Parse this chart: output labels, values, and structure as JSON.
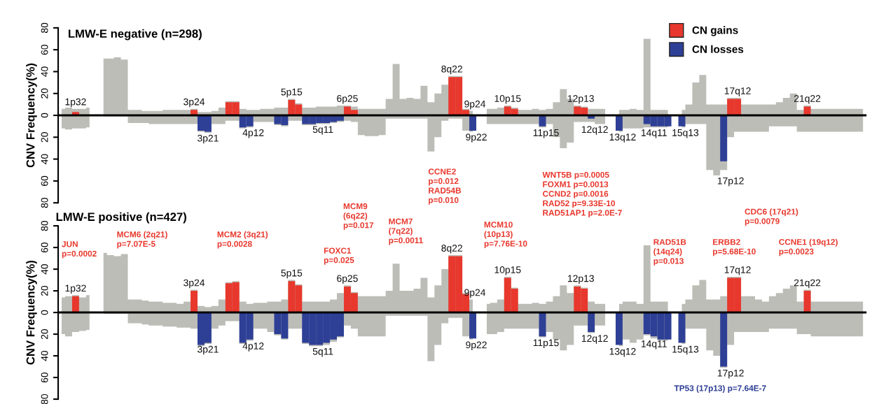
{
  "chart_data": [
    {
      "type": "area",
      "title": "LMW-E negative (n=298)",
      "ylabel": "CNV Frequency(%)",
      "categories": [
        null,
        null,
        null,
        null,
        null,
        null,
        null,
        null,
        null,
        null,
        null,
        null,
        null,
        null,
        null,
        null,
        null,
        null,
        null,
        null,
        null,
        null,
        null,
        null,
        null,
        null,
        null,
        null,
        null,
        null,
        null,
        null,
        null,
        null,
        null,
        null,
        null,
        null,
        null,
        null,
        null,
        null,
        null,
        null,
        null,
        null,
        null,
        null,
        null,
        null,
        null,
        null,
        null,
        null,
        null,
        null,
        null,
        null,
        null,
        null,
        null,
        null,
        null,
        null,
        null,
        null,
        null,
        null,
        null,
        null,
        null,
        null,
        null,
        null,
        null,
        null,
        null,
        null,
        null,
        null,
        null,
        null,
        null,
        null,
        null,
        null,
        null,
        null,
        null,
        null,
        null,
        null,
        null,
        null,
        null,
        null,
        null,
        null,
        null,
        null,
        null,
        null,
        null,
        null,
        null,
        null,
        null,
        null,
        null,
        null,
        null,
        null,
        null,
        null,
        null,
        null
      ],
      "ylim": [
        -80,
        80
      ],
      "yticks": [
        {
          "value": -80,
          "label": "80"
        },
        {
          "value": -60,
          "label": "60"
        },
        {
          "value": -40,
          "label": "40"
        },
        {
          "value": -20,
          "label": "20"
        },
        0,
        20,
        40,
        60,
        80
      ],
      "tick_labels": "y",
      "legend": "top right",
      "ref_lines": [
        {
          "axis": "y",
          "value": 0,
          "color": "#000000"
        }
      ],
      "annotations": [
        "1p32",
        "3p24",
        "5p15",
        "6p25",
        "8q22",
        "9p24",
        "10p15",
        "12p13",
        "17q12",
        "21q22",
        "3p21",
        "4p12",
        "5q11",
        "9p22",
        "11p15",
        "12q12",
        "13q12",
        "14q11",
        "15q13",
        "17p12"
      ],
      "series": [
        {
          "color": "#bdbdb8",
          "values": [
            6,
            7,
            6,
            6,
            7,
            null,
            52,
            52,
            53,
            51,
            5,
            5,
            4,
            4,
            4,
            5,
            5,
            5,
            5,
            6,
            3,
            3,
            4,
            7,
            13,
            13,
            6,
            5,
            5,
            6,
            6,
            7,
            7,
            15,
            11,
            7,
            7,
            8,
            8,
            8,
            9,
            9,
            8,
            6,
            6,
            6,
            6,
            15,
            47,
            15,
            16,
            15,
            27,
            12,
            20,
            28,
            36,
            36,
            6,
            4,
            null,
            6,
            6,
            7,
            9,
            7,
            5,
            5,
            6,
            5,
            6,
            12,
            24,
            15,
            9,
            8,
            6,
            6,
            6,
            null,
            5,
            5,
            6,
            5,
            70,
            5,
            5,
            5,
            null,
            5,
            10,
            30,
            37,
            10,
            10,
            10,
            16,
            16,
            10,
            10,
            10,
            10,
            10,
            12,
            16,
            20,
            5,
            9,
            6,
            6,
            6,
            6,
            6,
            6,
            6,
            6
          ]
        },
        {
          "color": "#bdbdb8",
          "values": [
            -12,
            -13,
            -12,
            -12,
            -11,
            null,
            -1,
            -1,
            -1,
            -1,
            -7,
            -7,
            -7,
            -8,
            -8,
            -8,
            -8,
            -8,
            -8,
            -8,
            -15,
            -16,
            -8,
            -8,
            -5,
            -5,
            -12,
            -11,
            -6,
            -6,
            -6,
            -9,
            -10,
            -5,
            -5,
            -9,
            -9,
            -8,
            -8,
            -7,
            -6,
            -5,
            -6,
            -18,
            -19,
            -19,
            -18,
            -3,
            -3,
            -3,
            -3,
            -3,
            -3,
            -33,
            -20,
            -5,
            -3,
            -3,
            -14,
            -15,
            null,
            -8,
            -8,
            -8,
            -8,
            -8,
            -8,
            -8,
            -8,
            -11,
            -8,
            -20,
            -30,
            -25,
            -6,
            -6,
            -6,
            -8,
            -8,
            null,
            -15,
            -12,
            -12,
            -12,
            -11,
            -11,
            -11,
            -11,
            null,
            -11,
            -8,
            -8,
            -8,
            -50,
            -55,
            -50,
            -20,
            -15,
            -15,
            -15,
            -15,
            -15,
            -10,
            -10,
            -10,
            -10,
            -15,
            -15,
            -15,
            -15,
            -15,
            -15,
            -15,
            -15,
            -15,
            -15
          ]
        },
        {
          "name": "CN gains",
          "type": "bar",
          "color": "#e8382d",
          "values": [
            null,
            null,
            3,
            null,
            null,
            null,
            null,
            null,
            null,
            null,
            null,
            null,
            null,
            null,
            null,
            null,
            null,
            null,
            null,
            5,
            null,
            null,
            null,
            null,
            12,
            12,
            null,
            null,
            null,
            null,
            null,
            null,
            null,
            14,
            10,
            null,
            null,
            null,
            null,
            null,
            null,
            8,
            5,
            null,
            null,
            null,
            null,
            null,
            null,
            null,
            null,
            null,
            null,
            null,
            null,
            null,
            35,
            35,
            5,
            null,
            null,
            null,
            null,
            null,
            8,
            6,
            null,
            null,
            null,
            null,
            null,
            null,
            null,
            null,
            8,
            7,
            null,
            null,
            null,
            null,
            null,
            null,
            null,
            null,
            null,
            null,
            null,
            null,
            null,
            null,
            null,
            null,
            null,
            null,
            null,
            null,
            15,
            15,
            null,
            null,
            null,
            null,
            null,
            null,
            null,
            null,
            null,
            8,
            null,
            null,
            null,
            null,
            null,
            null,
            null,
            null
          ]
        },
        {
          "name": "CN losses",
          "type": "bar",
          "color": "#2e3f96",
          "values": [
            null,
            null,
            null,
            null,
            null,
            null,
            null,
            null,
            null,
            null,
            null,
            null,
            null,
            null,
            null,
            null,
            null,
            null,
            null,
            null,
            -14,
            -15,
            null,
            null,
            null,
            null,
            -11,
            -10,
            null,
            null,
            null,
            -8,
            -9,
            null,
            null,
            -8,
            -8,
            -7,
            -7,
            -6,
            -5,
            null,
            null,
            null,
            null,
            null,
            null,
            null,
            null,
            null,
            null,
            null,
            null,
            null,
            null,
            null,
            null,
            null,
            null,
            -14,
            null,
            null,
            null,
            null,
            null,
            null,
            null,
            null,
            null,
            -10,
            null,
            null,
            null,
            null,
            null,
            null,
            -3,
            null,
            null,
            null,
            -14,
            null,
            null,
            null,
            -8,
            -10,
            -10,
            -10,
            null,
            -10,
            null,
            null,
            null,
            null,
            null,
            -42,
            null,
            null,
            null,
            null,
            null,
            null,
            null,
            null,
            null,
            null,
            null,
            null,
            null,
            null,
            null,
            null,
            null,
            null,
            null,
            null
          ]
        }
      ]
    },
    {
      "type": "area",
      "title": "LMW-E positive (n=427)",
      "ylabel": "CNV Frequency(%)",
      "categories": [
        null,
        null,
        null,
        null,
        null,
        null,
        null,
        null,
        null,
        null,
        null,
        null,
        null,
        null,
        null,
        null,
        null,
        null,
        null,
        null,
        null,
        null,
        null,
        null,
        null,
        null,
        null,
        null,
        null,
        null,
        null,
        null,
        null,
        null,
        null,
        null,
        null,
        null,
        null,
        null,
        null,
        null,
        null,
        null,
        null,
        null,
        null,
        null,
        null,
        null,
        null,
        null,
        null,
        null,
        null,
        null,
        null,
        null,
        null,
        null,
        null,
        null,
        null,
        null,
        null,
        null,
        null,
        null,
        null,
        null,
        null,
        null,
        null,
        null,
        null,
        null,
        null,
        null,
        null,
        null,
        null,
        null,
        null,
        null,
        null,
        null,
        null,
        null,
        null,
        null,
        null,
        null,
        null,
        null,
        null,
        null,
        null,
        null,
        null,
        null,
        null,
        null,
        null,
        null,
        null,
        null,
        null,
        null,
        null,
        null,
        null,
        null,
        null,
        null,
        null,
        null
      ],
      "ylim": [
        -80,
        80
      ],
      "yticks": [
        {
          "value": -80,
          "label": "80"
        },
        {
          "value": -60,
          "label": "60"
        },
        {
          "value": -40,
          "label": "40"
        },
        {
          "value": -20,
          "label": "20"
        },
        0,
        20,
        40,
        60,
        80
      ],
      "tick_labels": "y",
      "ref_lines": [
        {
          "axis": "y",
          "value": 0,
          "color": "#000000"
        }
      ],
      "annotations": [
        "JUN\np=0.0002",
        "MCM6 (2q21)\np=7.07E-5",
        "MCM2 (3q21)\np=0.0028",
        "FOXC1\np=0.025",
        "MCM9\n(6q22)\np=0.017",
        "MCM7\n(7q22)\np=0.0011",
        "CCNE2\np=0.012\nRAD54B\np=0.010",
        "MCM10\n(10p13)\np=7.76E-10",
        "WNT5B p=0.0005\nFOXM1 p=0.0013\nCCND2 p=0.0016\nRAD52 p=9.33E-10\nRAD51AP1 p=2.0E-7",
        "RAD51B\n(14q24)\np=0.013",
        "ERBB2\np=5.68E-10",
        "CDC6 (17q21)\np=0.0079",
        "CCNE1 (19q12)\np=0.0023",
        "TP53 (17p13) p=7.64E-7",
        "1p32",
        "3p24",
        "5p15",
        "6p25",
        "8q22",
        "9p24",
        "10p15",
        "12p13",
        "17q12",
        "21q22",
        "3p21",
        "4p12",
        "5q11",
        "9p22",
        "11p15",
        "12q12",
        "13q12",
        "14q11",
        "15q13",
        "17p12"
      ],
      "series": [
        {
          "color": "#bdbdb8",
          "values": [
            14,
            15,
            16,
            14,
            16,
            null,
            55,
            53,
            52,
            54,
            12,
            12,
            11,
            10,
            10,
            9,
            9,
            8,
            10,
            21,
            6,
            5,
            6,
            12,
            28,
            29,
            10,
            8,
            9,
            9,
            10,
            10,
            12,
            30,
            26,
            10,
            10,
            10,
            10,
            12,
            18,
            25,
            19,
            15,
            15,
            15,
            15,
            20,
            45,
            20,
            20,
            22,
            32,
            14,
            25,
            40,
            53,
            53,
            18,
            12,
            null,
            8,
            9,
            12,
            33,
            23,
            8,
            8,
            9,
            8,
            10,
            15,
            25,
            18,
            25,
            23,
            10,
            8,
            8,
            null,
            8,
            10,
            10,
            8,
            62,
            10,
            10,
            10,
            null,
            8,
            12,
            25,
            30,
            12,
            12,
            15,
            33,
            33,
            15,
            15,
            12,
            10,
            15,
            18,
            22,
            25,
            10,
            21,
            10,
            10,
            10,
            10,
            10,
            10,
            10,
            10
          ]
        },
        {
          "color": "#bdbdb8",
          "values": [
            -20,
            -22,
            -18,
            -17,
            -16,
            null,
            -1,
            -1,
            -1,
            -1,
            -10,
            -10,
            -11,
            -12,
            -12,
            -13,
            -13,
            -14,
            -14,
            -15,
            -31,
            -29,
            -15,
            -12,
            -8,
            -8,
            -29,
            -26,
            -15,
            -15,
            -18,
            -21,
            -25,
            -15,
            -15,
            -29,
            -31,
            -31,
            -30,
            -27,
            -23,
            -12,
            -15,
            -22,
            -22,
            -22,
            -22,
            -3,
            -3,
            -3,
            -3,
            -3,
            -3,
            -45,
            -30,
            -10,
            -5,
            -5,
            -22,
            -25,
            null,
            -20,
            -20,
            -18,
            -15,
            -15,
            -15,
            -15,
            -15,
            -23,
            -18,
            -25,
            -35,
            -30,
            -12,
            -12,
            -19,
            -12,
            -12,
            null,
            -31,
            -25,
            -28,
            -25,
            -21,
            -24,
            -26,
            -26,
            null,
            -29,
            -15,
            -15,
            -15,
            -35,
            -40,
            -51,
            -30,
            -18,
            -18,
            -18,
            -18,
            -18,
            -15,
            -15,
            -15,
            -15,
            -20,
            -20,
            -22,
            -22,
            -22,
            -22,
            -22,
            -22,
            -22,
            -22
          ]
        },
        {
          "type": "bar",
          "color": "#e8382d",
          "values": [
            null,
            null,
            15,
            null,
            null,
            null,
            null,
            null,
            null,
            null,
            null,
            null,
            null,
            null,
            null,
            null,
            null,
            null,
            null,
            20,
            null,
            null,
            null,
            null,
            27,
            28,
            null,
            null,
            null,
            null,
            null,
            null,
            null,
            29,
            25,
            null,
            null,
            null,
            null,
            null,
            null,
            24,
            18,
            null,
            null,
            null,
            null,
            null,
            null,
            null,
            null,
            null,
            null,
            null,
            null,
            null,
            52,
            52,
            17,
            null,
            null,
            null,
            null,
            null,
            32,
            22,
            null,
            null,
            null,
            null,
            null,
            null,
            null,
            null,
            24,
            22,
            null,
            null,
            null,
            null,
            null,
            null,
            null,
            null,
            null,
            null,
            null,
            null,
            null,
            null,
            null,
            null,
            null,
            null,
            null,
            null,
            32,
            32,
            null,
            null,
            null,
            null,
            null,
            null,
            null,
            null,
            null,
            20,
            null,
            null,
            null,
            null,
            null,
            null,
            null,
            null
          ]
        },
        {
          "type": "bar",
          "color": "#2e3f96",
          "values": [
            null,
            null,
            null,
            null,
            null,
            null,
            null,
            null,
            null,
            null,
            null,
            null,
            null,
            null,
            null,
            null,
            null,
            null,
            null,
            null,
            -30,
            -28,
            null,
            null,
            null,
            null,
            -28,
            -25,
            null,
            null,
            null,
            -20,
            -24,
            null,
            null,
            -28,
            -30,
            -30,
            -28,
            -25,
            -22,
            null,
            null,
            null,
            null,
            null,
            null,
            null,
            null,
            null,
            null,
            null,
            null,
            null,
            null,
            null,
            null,
            null,
            null,
            -24,
            null,
            null,
            null,
            null,
            null,
            null,
            null,
            null,
            null,
            -22,
            null,
            null,
            null,
            null,
            null,
            null,
            -18,
            null,
            null,
            null,
            -30,
            null,
            null,
            null,
            -20,
            -22,
            -25,
            -25,
            null,
            -28,
            null,
            null,
            null,
            null,
            null,
            -50,
            null,
            null,
            null,
            null,
            null,
            null,
            null,
            null,
            null,
            null,
            null,
            null,
            null,
            null,
            null,
            null,
            null,
            null,
            null,
            null
          ]
        }
      ]
    }
  ]
}
